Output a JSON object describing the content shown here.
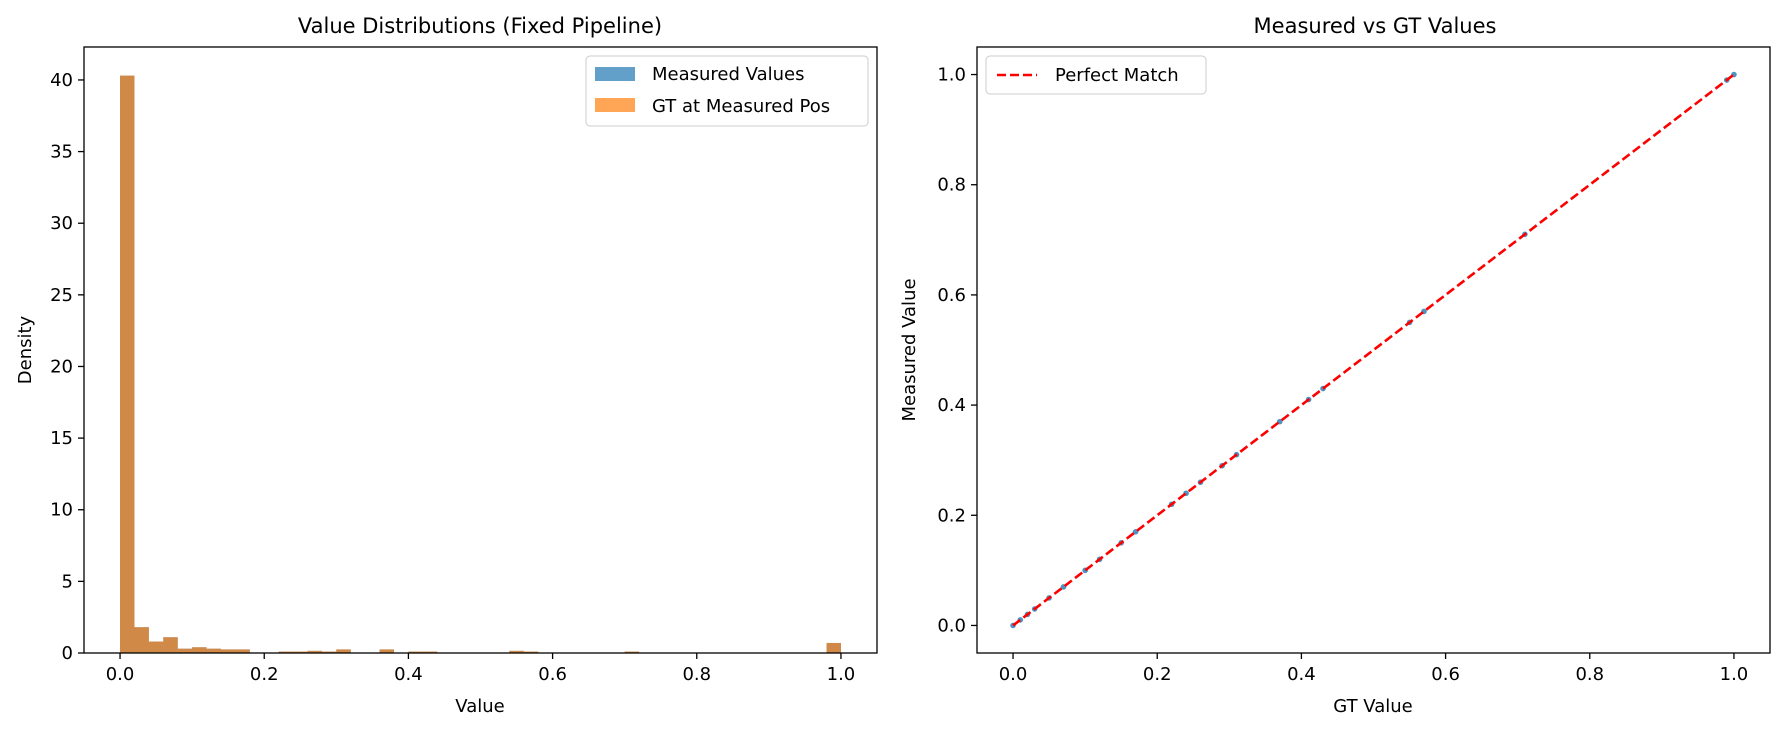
{
  "chart_data": [
    {
      "type": "bar",
      "title": "Value Distributions (Fixed Pipeline)",
      "xlabel": "Value",
      "ylabel": "Density",
      "xlim": [
        -0.05,
        1.05
      ],
      "ylim": [
        0,
        42.3
      ],
      "xticks": [
        "0.0",
        "0.2",
        "0.4",
        "0.6",
        "0.8",
        "1.0"
      ],
      "yticks": [
        "0",
        "5",
        "10",
        "15",
        "20",
        "25",
        "30",
        "35",
        "40"
      ],
      "grid": false,
      "legend_position": "top-right",
      "bin_width": 0.02,
      "series": [
        {
          "name": "Measured Values",
          "color": "#1f77b4",
          "bins": [
            {
              "x": 0.0,
              "y": 40.3
            },
            {
              "x": 0.02,
              "y": 1.8
            },
            {
              "x": 0.04,
              "y": 0.8
            },
            {
              "x": 0.06,
              "y": 1.1
            },
            {
              "x": 0.08,
              "y": 0.3
            },
            {
              "x": 0.1,
              "y": 0.4
            },
            {
              "x": 0.12,
              "y": 0.3
            },
            {
              "x": 0.14,
              "y": 0.25
            },
            {
              "x": 0.16,
              "y": 0.25
            },
            {
              "x": 0.22,
              "y": 0.1
            },
            {
              "x": 0.24,
              "y": 0.1
            },
            {
              "x": 0.26,
              "y": 0.15
            },
            {
              "x": 0.28,
              "y": 0.1
            },
            {
              "x": 0.3,
              "y": 0.25
            },
            {
              "x": 0.36,
              "y": 0.25
            },
            {
              "x": 0.4,
              "y": 0.1
            },
            {
              "x": 0.42,
              "y": 0.1
            },
            {
              "x": 0.54,
              "y": 0.15
            },
            {
              "x": 0.56,
              "y": 0.1
            },
            {
              "x": 0.7,
              "y": 0.1
            },
            {
              "x": 0.98,
              "y": 0.7
            }
          ]
        },
        {
          "name": "GT at Measured Pos",
          "color": "#ff7f0e",
          "bins": [
            {
              "x": 0.0,
              "y": 40.3
            },
            {
              "x": 0.02,
              "y": 1.8
            },
            {
              "x": 0.04,
              "y": 0.8
            },
            {
              "x": 0.06,
              "y": 1.1
            },
            {
              "x": 0.08,
              "y": 0.3
            },
            {
              "x": 0.1,
              "y": 0.4
            },
            {
              "x": 0.12,
              "y": 0.3
            },
            {
              "x": 0.14,
              "y": 0.25
            },
            {
              "x": 0.16,
              "y": 0.25
            },
            {
              "x": 0.22,
              "y": 0.1
            },
            {
              "x": 0.24,
              "y": 0.1
            },
            {
              "x": 0.26,
              "y": 0.15
            },
            {
              "x": 0.28,
              "y": 0.1
            },
            {
              "x": 0.3,
              "y": 0.25
            },
            {
              "x": 0.36,
              "y": 0.25
            },
            {
              "x": 0.4,
              "y": 0.1
            },
            {
              "x": 0.42,
              "y": 0.1
            },
            {
              "x": 0.54,
              "y": 0.15
            },
            {
              "x": 0.56,
              "y": 0.1
            },
            {
              "x": 0.7,
              "y": 0.1
            },
            {
              "x": 0.98,
              "y": 0.7
            }
          ]
        }
      ]
    },
    {
      "type": "scatter",
      "title": "Measured vs GT Values",
      "xlabel": "GT Value",
      "ylabel": "Measured Value",
      "xlim": [
        -0.05,
        1.05
      ],
      "ylim": [
        -0.05,
        1.05
      ],
      "xticks": [
        "0.0",
        "0.2",
        "0.4",
        "0.6",
        "0.8",
        "1.0"
      ],
      "yticks": [
        "0.0",
        "0.2",
        "0.4",
        "0.6",
        "0.8",
        "1.0"
      ],
      "grid": false,
      "legend_position": "top-left",
      "series": [
        {
          "color": "#1f77b4",
          "points": [
            [
              0.0,
              0.0
            ],
            [
              0.01,
              0.01
            ],
            [
              0.02,
              0.02
            ],
            [
              0.03,
              0.03
            ],
            [
              0.05,
              0.05
            ],
            [
              0.07,
              0.07
            ],
            [
              0.1,
              0.1
            ],
            [
              0.12,
              0.12
            ],
            [
              0.15,
              0.15
            ],
            [
              0.17,
              0.17
            ],
            [
              0.22,
              0.22
            ],
            [
              0.24,
              0.24
            ],
            [
              0.26,
              0.26
            ],
            [
              0.29,
              0.29
            ],
            [
              0.31,
              0.31
            ],
            [
              0.37,
              0.37
            ],
            [
              0.41,
              0.41
            ],
            [
              0.43,
              0.43
            ],
            [
              0.55,
              0.55
            ],
            [
              0.57,
              0.57
            ],
            [
              0.71,
              0.71
            ],
            [
              0.99,
              0.99
            ],
            [
              1.0,
              1.0
            ]
          ]
        },
        {
          "name": "Perfect Match",
          "color": "#ff0000",
          "style": "dashed",
          "line": [
            [
              0.0,
              0.0
            ],
            [
              1.0,
              1.0
            ]
          ]
        }
      ]
    }
  ]
}
